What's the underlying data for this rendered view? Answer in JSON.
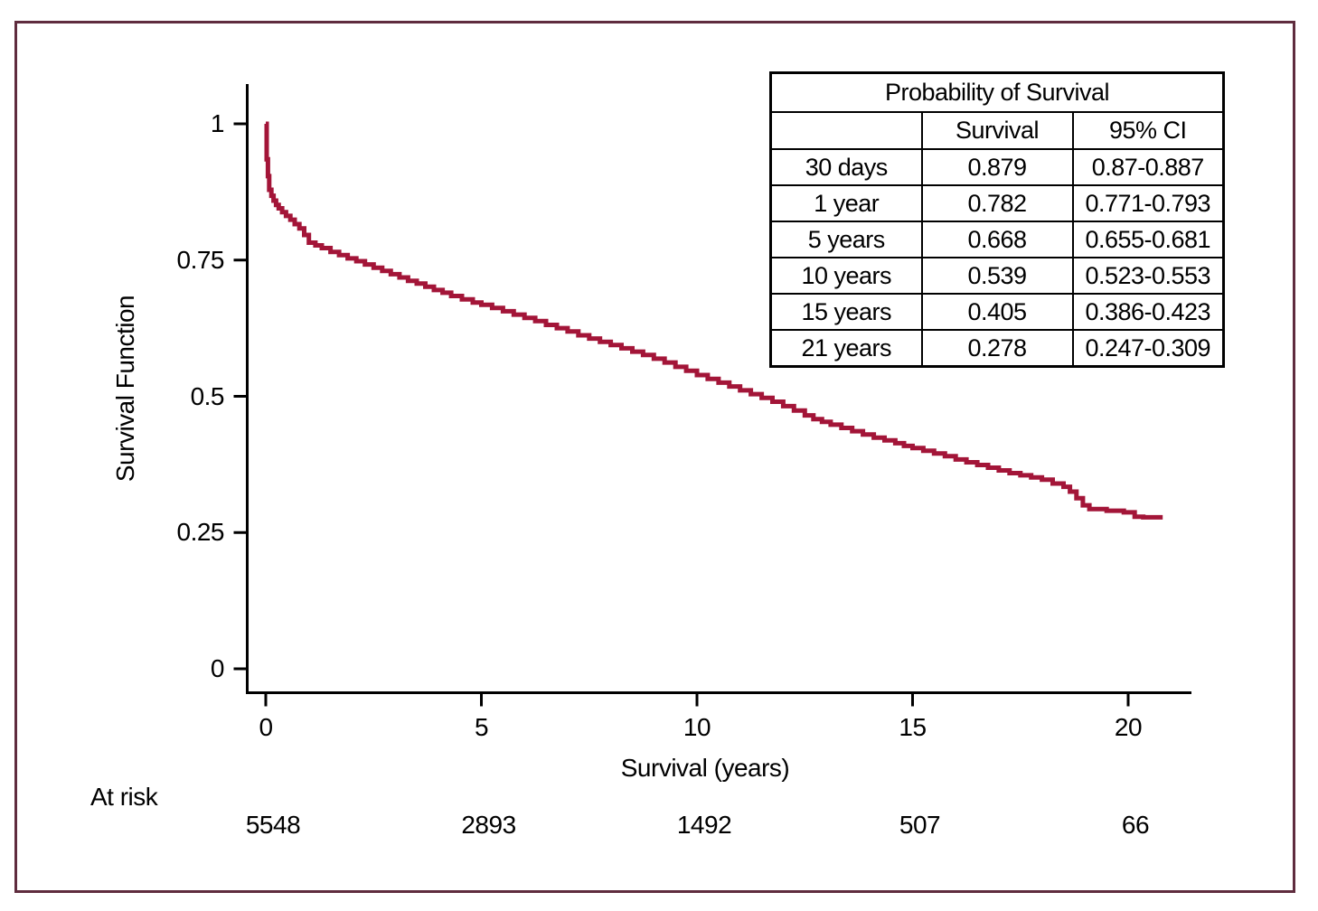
{
  "figure": {
    "border_color": "#5f2c3e",
    "background": "#ffffff"
  },
  "chart_data": {
    "type": "line",
    "subtype": "kaplan-meier-step",
    "title": "",
    "xlabel": "Survival (years)",
    "ylabel": "Survival Function",
    "xlim": [
      0,
      21.5
    ],
    "ylim": [
      0,
      1.05
    ],
    "x_ticks": [
      0,
      5,
      10,
      15,
      20
    ],
    "x_tick_labels": [
      "0",
      "5",
      "10",
      "15",
      "20"
    ],
    "y_ticks": [
      0,
      0.25,
      0.5,
      0.75,
      1
    ],
    "y_tick_labels": [
      "0",
      "0.25",
      "0.5",
      "0.75",
      "1"
    ],
    "grid": false,
    "line_color": "#a31538",
    "axis_color": "#000000",
    "series": [
      {
        "name": "Survival Function",
        "points": [
          [
            0,
            1.0
          ],
          [
            0.02,
            0.935
          ],
          [
            0.05,
            0.904
          ],
          [
            0.08,
            0.879
          ],
          [
            0.13,
            0.868
          ],
          [
            0.18,
            0.859
          ],
          [
            0.24,
            0.851
          ],
          [
            0.3,
            0.845
          ],
          [
            0.38,
            0.838
          ],
          [
            0.47,
            0.831
          ],
          [
            0.57,
            0.824
          ],
          [
            0.67,
            0.816
          ],
          [
            0.78,
            0.808
          ],
          [
            0.89,
            0.796
          ],
          [
            1.0,
            0.782
          ],
          [
            1.15,
            0.777
          ],
          [
            1.3,
            0.772
          ],
          [
            1.5,
            0.765
          ],
          [
            1.7,
            0.759
          ],
          [
            1.9,
            0.753
          ],
          [
            2.1,
            0.748
          ],
          [
            2.3,
            0.742
          ],
          [
            2.5,
            0.736
          ],
          [
            2.7,
            0.73
          ],
          [
            2.9,
            0.724
          ],
          [
            3.1,
            0.718
          ],
          [
            3.3,
            0.712
          ],
          [
            3.5,
            0.707
          ],
          [
            3.7,
            0.701
          ],
          [
            3.9,
            0.695
          ],
          [
            4.1,
            0.69
          ],
          [
            4.3,
            0.684
          ],
          [
            4.55,
            0.678
          ],
          [
            4.8,
            0.672
          ],
          [
            5.0,
            0.668
          ],
          [
            5.25,
            0.662
          ],
          [
            5.5,
            0.656
          ],
          [
            5.75,
            0.65
          ],
          [
            6.0,
            0.644
          ],
          [
            6.25,
            0.638
          ],
          [
            6.5,
            0.631
          ],
          [
            6.75,
            0.625
          ],
          [
            7.0,
            0.619
          ],
          [
            7.25,
            0.612
          ],
          [
            7.5,
            0.606
          ],
          [
            7.75,
            0.6
          ],
          [
            8.0,
            0.594
          ],
          [
            8.25,
            0.588
          ],
          [
            8.5,
            0.582
          ],
          [
            8.75,
            0.576
          ],
          [
            9.0,
            0.569
          ],
          [
            9.25,
            0.562
          ],
          [
            9.5,
            0.554
          ],
          [
            9.75,
            0.547
          ],
          [
            10.0,
            0.539
          ],
          [
            10.25,
            0.532
          ],
          [
            10.5,
            0.525
          ],
          [
            10.75,
            0.518
          ],
          [
            11.0,
            0.511
          ],
          [
            11.25,
            0.504
          ],
          [
            11.5,
            0.497
          ],
          [
            11.75,
            0.49
          ],
          [
            12.0,
            0.482
          ],
          [
            12.25,
            0.474
          ],
          [
            12.5,
            0.465
          ],
          [
            12.7,
            0.458
          ],
          [
            12.9,
            0.453
          ],
          [
            13.1,
            0.448
          ],
          [
            13.35,
            0.442
          ],
          [
            13.6,
            0.436
          ],
          [
            13.85,
            0.43
          ],
          [
            14.1,
            0.424
          ],
          [
            14.35,
            0.419
          ],
          [
            14.6,
            0.414
          ],
          [
            14.8,
            0.409
          ],
          [
            15.0,
            0.405
          ],
          [
            15.25,
            0.4
          ],
          [
            15.5,
            0.395
          ],
          [
            15.75,
            0.39
          ],
          [
            16.0,
            0.384
          ],
          [
            16.25,
            0.379
          ],
          [
            16.5,
            0.374
          ],
          [
            16.75,
            0.369
          ],
          [
            17.0,
            0.364
          ],
          [
            17.25,
            0.359
          ],
          [
            17.5,
            0.355
          ],
          [
            17.75,
            0.351
          ],
          [
            18.0,
            0.347
          ],
          [
            18.25,
            0.34
          ],
          [
            18.5,
            0.334
          ],
          [
            18.65,
            0.325
          ],
          [
            18.8,
            0.313
          ],
          [
            18.95,
            0.3
          ],
          [
            19.1,
            0.293
          ],
          [
            19.5,
            0.29
          ],
          [
            19.9,
            0.287
          ],
          [
            20.15,
            0.279
          ],
          [
            20.35,
            0.278
          ],
          [
            20.8,
            0.278
          ]
        ]
      }
    ],
    "at_risk": {
      "label": "At risk",
      "times": [
        0,
        5,
        10,
        15,
        20
      ],
      "counts": [
        "5548",
        "2893",
        "1492",
        "507",
        "66"
      ]
    }
  },
  "prob_table": {
    "title": "Probability of Survival",
    "col_headers": [
      "",
      "Survival",
      "95% CI"
    ],
    "rows": [
      {
        "label": "30 days",
        "survival": "0.879",
        "ci": "0.87-0.887"
      },
      {
        "label": "1 year",
        "survival": "0.782",
        "ci": "0.771-0.793"
      },
      {
        "label": "5 years",
        "survival": "0.668",
        "ci": "0.655-0.681"
      },
      {
        "label": "10 years",
        "survival": "0.539",
        "ci": "0.523-0.553"
      },
      {
        "label": "15 years",
        "survival": "0.405",
        "ci": "0.386-0.423"
      },
      {
        "label": "21 years",
        "survival": "0.278",
        "ci": "0.247-0.309"
      }
    ]
  }
}
